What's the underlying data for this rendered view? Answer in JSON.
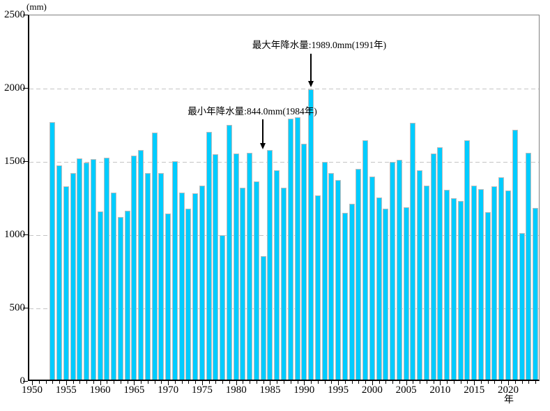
{
  "chart_data": {
    "type": "bar",
    "title": "",
    "unit_label": "(mm)",
    "x_axis_label": "年",
    "ylabel": "(mm)",
    "xlabel": "年",
    "ylim": [
      0,
      2500
    ],
    "y_ticks": [
      "0",
      "500",
      "1000",
      "1500",
      "2000",
      "2500"
    ],
    "x_tick_labels": [
      "1950",
      "1955",
      "1960",
      "1965",
      "1970",
      "1975",
      "1980",
      "1985",
      "1990",
      "1995",
      "2000",
      "2005",
      "2010",
      "2015",
      "2020"
    ],
    "x_range": [
      1950,
      2024
    ],
    "grid": "horizontal dashed every 500",
    "legend": "none",
    "categories": [
      1953,
      1954,
      1955,
      1956,
      1957,
      1958,
      1959,
      1960,
      1961,
      1962,
      1963,
      1964,
      1965,
      1966,
      1967,
      1968,
      1969,
      1970,
      1971,
      1972,
      1973,
      1974,
      1975,
      1976,
      1977,
      1978,
      1979,
      1980,
      1981,
      1982,
      1983,
      1984,
      1985,
      1986,
      1987,
      1988,
      1989,
      1990,
      1991,
      1992,
      1993,
      1994,
      1995,
      1996,
      1997,
      1998,
      1999,
      2000,
      2001,
      2002,
      2003,
      2004,
      2005,
      2006,
      2007,
      2008,
      2009,
      2010,
      2011,
      2012,
      2013,
      2014,
      2015,
      2016,
      2017,
      2018,
      2019,
      2020,
      2021,
      2022,
      2023,
      2024
    ],
    "values": [
      1762,
      1466,
      1322,
      1417,
      1513,
      1489,
      1510,
      1151,
      1522,
      1283,
      1113,
      1158,
      1533,
      1571,
      1414,
      1692,
      1417,
      1139,
      1497,
      1282,
      1171,
      1274,
      1330,
      1695,
      1544,
      988,
      1746,
      1549,
      1314,
      1552,
      1358,
      844,
      1574,
      1433,
      1314,
      1787,
      1798,
      1615,
      1989,
      1262,
      1492,
      1413,
      1366,
      1143,
      1206,
      1444,
      1639,
      1390,
      1248,
      1171,
      1492,
      1505,
      1179,
      1759,
      1433,
      1327,
      1547,
      1592,
      1301,
      1243,
      1222,
      1638,
      1329,
      1303,
      1148,
      1322,
      1386,
      1297,
      1711,
      1005,
      1552,
      1175
    ],
    "annotations": [
      {
        "name": "max",
        "text": "最大年降水量:1989.0mm(1991年)",
        "year": 1991,
        "value": 1989.0
      },
      {
        "name": "min",
        "text": "最小年降水量:844.0mm(1984年)",
        "year": 1984,
        "value": 844.0
      }
    ],
    "colors": {
      "bar_fill": "#00CCFF",
      "bar_border": "#BDBDBD",
      "grid": "#C4C4C4",
      "axis": "#000000",
      "box_border": "#808080",
      "background": "#FFFFFF"
    }
  }
}
